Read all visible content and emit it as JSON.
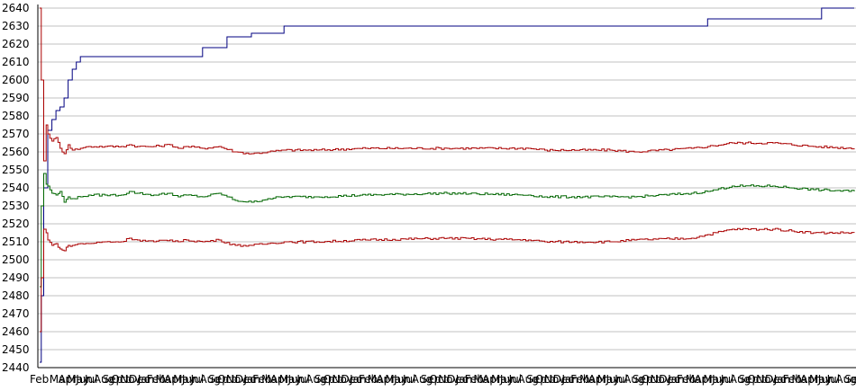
{
  "chart_data": {
    "type": "line",
    "title": "",
    "xlabel": "",
    "ylabel": "",
    "ylim": [
      2440,
      2640
    ],
    "grid": true,
    "legend": "none",
    "y_ticks": [
      "2440",
      "2450",
      "2460",
      "2470",
      "2480",
      "2490",
      "2500",
      "2510",
      "2520",
      "2530",
      "2540",
      "2550",
      "2560",
      "2570",
      "2580",
      "2590",
      "2600",
      "2610",
      "2620",
      "2630",
      "2640"
    ],
    "x_tick_labels": [
      "Feb",
      "Mar",
      "Apr",
      "May",
      "Jun",
      "Jul",
      "Aug",
      "Sep",
      "Oct",
      "Nov",
      "Dec",
      "Jan",
      "Feb",
      "Mar",
      "Apr",
      "May",
      "Jun",
      "Jul",
      "Aug",
      "Sep",
      "Oct",
      "Nov",
      "Dec",
      "Jan",
      "Feb",
      "Mar",
      "Apr",
      "May",
      "Jun",
      "Jul",
      "Aug",
      "Sep",
      "Oct",
      "Nov",
      "Dec",
      "Jan",
      "Feb",
      "Mar",
      "Apr",
      "May",
      "Jun",
      "Jul",
      "Aug",
      "Sep",
      "Oct",
      "Nov",
      "Dec",
      "Jan",
      "Feb",
      "Mar",
      "Apr",
      "May",
      "Jun",
      "Jul",
      "Aug",
      "Sep",
      "Oct",
      "Nov",
      "Dec",
      "Jan",
      "Feb",
      "Mar",
      "Apr",
      "May",
      "Jun",
      "Jul",
      "Aug",
      "Sep",
      "Oct",
      "Nov",
      "Dec",
      "Jan",
      "Feb",
      "Mar",
      "Apr",
      "May",
      "Jun",
      "Jul",
      "Aug",
      "Sep",
      "Oct",
      "Nov",
      "Dec",
      "Jan",
      "Feb",
      "Mar",
      "Apr",
      "May",
      "Jun",
      "Jul",
      "Aug",
      "Sep"
    ],
    "series": [
      {
        "color": "#000080",
        "x": [
          0,
          0.2,
          0.5,
          1,
          1.5,
          2,
          2.5,
          3,
          3.5,
          4,
          4.5,
          5,
          6,
          8,
          10,
          12,
          14,
          16,
          18,
          20,
          21,
          23,
          24,
          26,
          27,
          30,
          60,
          70,
          80,
          82,
          90,
          95,
          96,
          100
        ],
        "values": [
          2443,
          2480,
          2540,
          2572,
          2578,
          2583,
          2585,
          2590,
          2600,
          2606,
          2610,
          2613,
          2613,
          2613,
          2613,
          2613,
          2613,
          2613,
          2613,
          2618,
          2618,
          2624,
          2624,
          2626,
          2626,
          2630,
          2630,
          2630,
          2630,
          2634,
          2634,
          2634,
          2640,
          2640
        ]
      },
      {
        "color": "#aa0000",
        "x": [
          0,
          0.2,
          0.5,
          0.8,
          1,
          1.5,
          2,
          2.5,
          3,
          3.5,
          4,
          5,
          6,
          8,
          10,
          11,
          12,
          14,
          16,
          17,
          18,
          20,
          22,
          24,
          26,
          28,
          30,
          34,
          40,
          50,
          60,
          62,
          70,
          73,
          80,
          82,
          85,
          90,
          95,
          100
        ],
        "values": [
          2640,
          2600,
          2555,
          2575,
          2570,
          2566,
          2568,
          2562,
          2559,
          2564,
          2561,
          2562,
          2563,
          2563,
          2563,
          2564,
          2563,
          2563,
          2564,
          2562,
          2563,
          2562,
          2563,
          2560,
          2559,
          2560,
          2561,
          2561,
          2562,
          2562,
          2562,
          2561,
          2561,
          2560,
          2562,
          2563,
          2565,
          2565,
          2563,
          2562
        ]
      },
      {
        "color": "#006600",
        "x": [
          0,
          0.2,
          0.5,
          0.8,
          1,
          1.5,
          2,
          2.5,
          3,
          3.5,
          4,
          5,
          6,
          8,
          10,
          11,
          12,
          14,
          16,
          17,
          18,
          20,
          22,
          24,
          26,
          28,
          30,
          34,
          40,
          50,
          60,
          62,
          70,
          73,
          80,
          82,
          85,
          90,
          95,
          100
        ],
        "values": [
          2485,
          2530,
          2548,
          2542,
          2541,
          2537,
          2536,
          2538,
          2532,
          2535,
          2534,
          2535,
          2536,
          2536,
          2536,
          2538,
          2537,
          2536,
          2537,
          2535,
          2536,
          2535,
          2537,
          2533,
          2532,
          2534,
          2535,
          2535,
          2536,
          2537,
          2536,
          2535,
          2535,
          2535,
          2537,
          2538,
          2541,
          2541,
          2539,
          2538
        ]
      },
      {
        "color": "#aa0000",
        "x": [
          0,
          0.2,
          0.5,
          0.8,
          1,
          1.5,
          2,
          2.5,
          3,
          3.5,
          4,
          5,
          6,
          8,
          10,
          11,
          12,
          14,
          16,
          17,
          18,
          20,
          22,
          24,
          26,
          28,
          30,
          34,
          40,
          50,
          60,
          62,
          70,
          73,
          80,
          82,
          85,
          90,
          95,
          100
        ],
        "values": [
          2460,
          2490,
          2517,
          2515,
          2511,
          2508,
          2509,
          2506,
          2505,
          2508,
          2508,
          2509,
          2509,
          2510,
          2510,
          2512,
          2511,
          2510,
          2511,
          2510,
          2511,
          2510,
          2511,
          2508,
          2508,
          2509,
          2510,
          2510,
          2511,
          2512,
          2511,
          2510,
          2510,
          2511,
          2512,
          2514,
          2517,
          2517,
          2515,
          2515
        ]
      }
    ]
  }
}
